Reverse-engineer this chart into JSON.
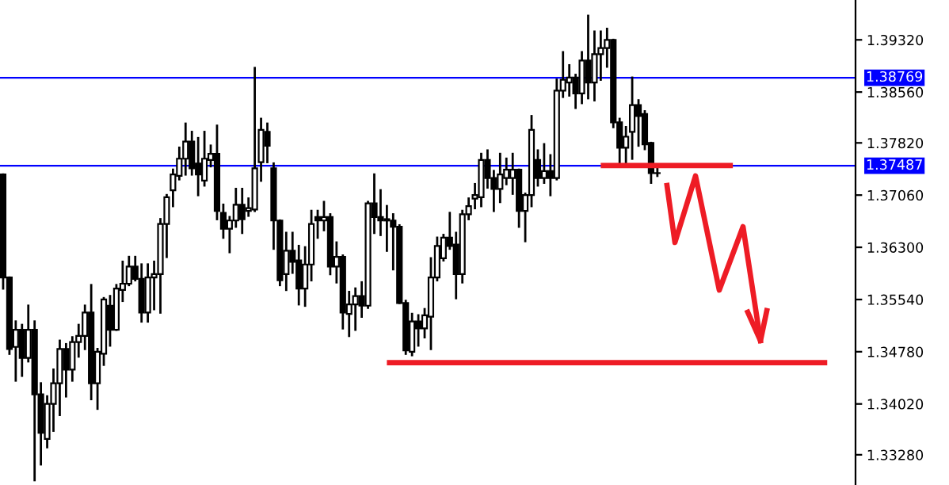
{
  "chart_data": {
    "type": "candlestick",
    "categories": [
      null,
      null,
      null,
      null,
      null,
      null,
      null,
      null,
      null,
      null,
      null,
      null,
      null,
      null,
      null,
      null,
      null,
      null,
      null,
      null,
      null,
      null,
      null,
      null,
      null,
      null,
      null,
      null,
      null,
      null,
      null,
      null,
      null,
      null,
      null,
      null,
      null,
      null,
      null,
      null,
      null,
      null,
      null,
      null,
      null,
      null,
      null,
      null,
      null,
      null,
      null,
      null,
      null,
      null,
      null,
      null,
      null,
      null,
      null,
      null,
      null,
      null,
      null,
      null,
      null,
      null,
      null,
      null,
      null,
      null,
      null,
      null,
      null,
      null,
      null,
      null,
      null,
      null,
      null,
      null,
      null,
      null,
      null,
      null,
      null,
      null,
      null,
      null,
      null,
      null,
      null,
      null,
      null,
      null,
      null,
      null,
      null,
      null,
      null,
      null,
      null,
      null,
      null,
      null,
      null,
      null,
      null,
      null,
      null,
      null,
      null,
      null,
      null,
      null,
      null,
      null,
      null,
      null,
      null,
      null,
      null,
      null,
      null,
      null,
      null,
      null,
      null,
      null,
      null,
      null,
      null,
      null,
      null,
      null,
      null,
      null
    ],
    "ohlc": [
      [
        1.3736,
        1.3736,
        1.357,
        1.3586
      ],
      [
        1.3586,
        1.3586,
        1.3475,
        1.3482
      ],
      [
        1.3485,
        1.3522,
        1.3436,
        1.351
      ],
      [
        1.351,
        1.3517,
        1.3443,
        1.3469
      ],
      [
        1.3469,
        1.3545,
        1.3464,
        1.351
      ],
      [
        1.351,
        1.3522,
        1.3291,
        1.3416
      ],
      [
        1.3416,
        1.3432,
        1.3314,
        1.336
      ],
      [
        1.3351,
        1.3413,
        1.3339,
        1.3402
      ],
      [
        1.3402,
        1.3452,
        1.3363,
        1.3432
      ],
      [
        1.3432,
        1.3494,
        1.3386,
        1.3482
      ],
      [
        1.3482,
        1.3489,
        1.3413,
        1.3452
      ],
      [
        1.3452,
        1.3499,
        1.3436,
        1.3492
      ],
      [
        1.3492,
        1.3517,
        1.3471,
        1.3501
      ],
      [
        1.3501,
        1.3545,
        1.3482,
        1.3535
      ],
      [
        1.3535,
        1.3575,
        1.3409,
        1.3432
      ],
      [
        1.3432,
        1.3482,
        1.3395,
        1.3478
      ],
      [
        1.3475,
        1.3556,
        1.3459,
        1.3554
      ],
      [
        1.3545,
        1.3559,
        1.3487,
        1.351
      ],
      [
        1.351,
        1.3575,
        1.351,
        1.357
      ],
      [
        1.3568,
        1.3609,
        1.3552,
        1.3577
      ],
      [
        1.3577,
        1.3616,
        1.3575,
        1.3602
      ],
      [
        1.3602,
        1.3616,
        1.3582,
        1.3584
      ],
      [
        1.3584,
        1.3605,
        1.3522,
        1.3535
      ],
      [
        1.3535,
        1.3605,
        1.3522,
        1.3586
      ],
      [
        1.3586,
        1.3609,
        1.354,
        1.3591
      ],
      [
        1.3591,
        1.3671,
        1.3535,
        1.3664
      ],
      [
        1.3664,
        1.3706,
        1.3616,
        1.3703
      ],
      [
        1.3713,
        1.3743,
        1.369,
        1.3736
      ],
      [
        1.3734,
        1.3775,
        1.3729,
        1.3759
      ],
      [
        1.3759,
        1.381,
        1.3736,
        1.3784
      ],
      [
        1.3784,
        1.3798,
        1.3736,
        1.3745
      ],
      [
        1.3752,
        1.3789,
        1.3706,
        1.3736
      ],
      [
        1.3727,
        1.3798,
        1.372,
        1.3759
      ],
      [
        1.3757,
        1.3778,
        1.3748,
        1.3766
      ],
      [
        1.3766,
        1.3807,
        1.3671,
        1.3683
      ],
      [
        1.368,
        1.3692,
        1.3644,
        1.3657
      ],
      [
        1.3657,
        1.3674,
        1.3623,
        1.3669
      ],
      [
        1.3669,
        1.3715,
        1.366,
        1.3692
      ],
      [
        1.3692,
        1.3715,
        1.3651,
        1.3671
      ],
      [
        1.3683,
        1.3701,
        1.3676,
        1.3687
      ],
      [
        1.3685,
        1.3891,
        1.3683,
        1.3745
      ],
      [
        1.3754,
        1.3817,
        1.3727,
        1.3801
      ],
      [
        1.3798,
        1.381,
        1.3754,
        1.3778
      ],
      [
        1.3745,
        1.3752,
        1.3628,
        1.3669
      ],
      [
        1.3669,
        1.3669,
        1.3575,
        1.3582
      ],
      [
        1.3591,
        1.3651,
        1.3568,
        1.3625
      ],
      [
        1.3625,
        1.3651,
        1.3593,
        1.3609
      ],
      [
        1.3611,
        1.3632,
        1.3547,
        1.357
      ],
      [
        1.357,
        1.363,
        1.3545,
        1.3605
      ],
      [
        1.3605,
        1.3683,
        1.3582,
        1.3664
      ],
      [
        1.3674,
        1.3683,
        1.3644,
        1.3669
      ],
      [
        1.3669,
        1.3696,
        1.3655,
        1.3674
      ],
      [
        1.3674,
        1.3678,
        1.3591,
        1.3602
      ],
      [
        1.3602,
        1.3637,
        1.3579,
        1.3616
      ],
      [
        1.3616,
        1.3618,
        1.3512,
        1.3535
      ],
      [
        1.3533,
        1.3565,
        1.3501,
        1.3547
      ],
      [
        1.3547,
        1.357,
        1.351,
        1.3559
      ],
      [
        1.3559,
        1.3579,
        1.3529,
        1.3545
      ],
      [
        1.3545,
        1.3696,
        1.3542,
        1.3694
      ],
      [
        1.3694,
        1.3736,
        1.3651,
        1.3674
      ],
      [
        1.3674,
        1.3713,
        1.3648,
        1.3669
      ],
      [
        1.3671,
        1.369,
        1.3625,
        1.3669
      ],
      [
        1.3669,
        1.3678,
        1.3598,
        1.366
      ],
      [
        1.366,
        1.3662,
        1.3549,
        1.3549
      ],
      [
        1.3549,
        1.3552,
        1.3475,
        1.348
      ],
      [
        1.3478,
        1.3533,
        1.3473,
        1.3522
      ],
      [
        1.3522,
        1.3531,
        1.3487,
        1.3512
      ],
      [
        1.3512,
        1.354,
        1.3499,
        1.3531
      ],
      [
        1.3529,
        1.3614,
        1.3482,
        1.3586
      ],
      [
        1.3586,
        1.3644,
        1.3582,
        1.3632
      ],
      [
        1.3614,
        1.3648,
        1.3611,
        1.3644
      ],
      [
        1.3644,
        1.368,
        1.3628,
        1.3632
      ],
      [
        1.3634,
        1.3651,
        1.3556,
        1.3591
      ],
      [
        1.3591,
        1.3683,
        1.3579,
        1.3678
      ],
      [
        1.3678,
        1.3701,
        1.3671,
        1.369
      ],
      [
        1.3701,
        1.3722,
        1.3687,
        1.3706
      ],
      [
        1.3703,
        1.3766,
        1.369,
        1.3757
      ],
      [
        1.3757,
        1.3771,
        1.3717,
        1.3731
      ],
      [
        1.3731,
        1.3741,
        1.3683,
        1.3715
      ],
      [
        1.3715,
        1.3766,
        1.3696,
        1.3736
      ],
      [
        1.3731,
        1.3759,
        1.3722,
        1.3743
      ],
      [
        1.3731,
        1.3766,
        1.3708,
        1.3743
      ],
      [
        1.3743,
        1.3743,
        1.366,
        1.3683
      ],
      [
        1.3683,
        1.3708,
        1.3639,
        1.3706
      ],
      [
        1.3706,
        1.3821,
        1.369,
        1.3801
      ],
      [
        1.3757,
        1.3771,
        1.372,
        1.3731
      ],
      [
        1.3731,
        1.378,
        1.3724,
        1.3741
      ],
      [
        1.3741,
        1.3764,
        1.3706,
        1.3731
      ],
      [
        1.3731,
        1.3874,
        1.3729,
        1.3858
      ],
      [
        1.3858,
        1.3914,
        1.3849,
        1.3874
      ],
      [
        1.387,
        1.3895,
        1.3851,
        1.3877
      ],
      [
        1.3877,
        1.3881,
        1.3833,
        1.3854
      ],
      [
        1.3854,
        1.3914,
        1.384,
        1.3902
      ],
      [
        1.3902,
        1.3967,
        1.3847,
        1.387
      ],
      [
        1.387,
        1.3944,
        1.3844,
        1.3911
      ],
      [
        1.3911,
        1.3944,
        1.3874,
        1.392
      ],
      [
        1.392,
        1.3948,
        1.3893,
        1.3932
      ],
      [
        1.3932,
        1.3932,
        1.3805,
        1.3812
      ],
      [
        1.3812,
        1.3817,
        1.375,
        1.3775
      ],
      [
        1.3775,
        1.3805,
        1.3752,
        1.3791
      ],
      [
        1.3798,
        1.3877,
        1.3759,
        1.3837
      ],
      [
        1.3837,
        1.3844,
        1.3778,
        1.3821
      ],
      [
        1.3824,
        1.3828,
        1.3773,
        1.378
      ],
      [
        1.3782,
        1.3782,
        1.3724,
        1.3738
      ],
      [
        1.3738,
        1.3745,
        1.3734,
        1.3738
      ],
      null,
      null,
      null,
      null,
      null,
      null,
      null,
      null,
      null,
      null,
      null,
      null,
      null,
      null,
      null,
      null,
      null,
      null,
      null,
      null,
      null,
      null,
      null,
      null,
      null,
      null,
      null,
      null,
      null,
      null,
      null
    ],
    "series": [
      {
        "type": "line",
        "color": "#ee1c25",
        "values": [
          null,
          null,
          null,
          null,
          null,
          null,
          null,
          null,
          null,
          null,
          null,
          null,
          null,
          null,
          null,
          null,
          null,
          null,
          null,
          null,
          null,
          null,
          null,
          null,
          null,
          null,
          null,
          null,
          null,
          null,
          null,
          null,
          null,
          null,
          null,
          null,
          null,
          null,
          null,
          null,
          null,
          null,
          null,
          null,
          null,
          null,
          null,
          null,
          null,
          null,
          null,
          null,
          null,
          null,
          null,
          null,
          null,
          null,
          null,
          null,
          null,
          null,
          null,
          null,
          null,
          null,
          null,
          null,
          null,
          null,
          null,
          null,
          null,
          null,
          null,
          null,
          null,
          null,
          null,
          null,
          null,
          null,
          null,
          null,
          null,
          null,
          null,
          null,
          null,
          null,
          null,
          null,
          null,
          null,
          null,
          1.3749,
          1.3749,
          1.3749,
          1.3749,
          1.3749,
          1.3749,
          1.3749,
          1.3749,
          1.3749,
          1.3749,
          1.3749,
          1.3749,
          1.3749,
          1.3749,
          1.3749,
          1.3749,
          1.3749,
          1.3749,
          1.3749,
          1.3749,
          1.3749,
          1.3749,
          null,
          null,
          null,
          null,
          null,
          null,
          null,
          null,
          null,
          null,
          null,
          null,
          null,
          null,
          null,
          null,
          null,
          null,
          null
        ]
      },
      {
        "type": "line",
        "color": "#ee1c25",
        "values": [
          null,
          null,
          null,
          null,
          null,
          null,
          null,
          null,
          null,
          null,
          null,
          null,
          null,
          null,
          null,
          null,
          null,
          null,
          null,
          null,
          null,
          null,
          null,
          null,
          null,
          null,
          null,
          null,
          null,
          null,
          null,
          null,
          null,
          null,
          null,
          null,
          null,
          null,
          null,
          null,
          null,
          null,
          null,
          null,
          null,
          null,
          null,
          null,
          null,
          null,
          null,
          null,
          null,
          null,
          null,
          null,
          null,
          null,
          null,
          null,
          null,
          1.3462,
          1.3462,
          1.3462,
          1.3462,
          1.3462,
          1.3462,
          1.3462,
          1.3462,
          1.3462,
          1.3462,
          1.3462,
          1.3462,
          1.3462,
          1.3462,
          1.3462,
          1.3462,
          1.3462,
          1.3462,
          1.3462,
          1.3462,
          1.3462,
          1.3462,
          1.3462,
          1.3462,
          1.3462,
          1.3462,
          1.3462,
          1.3462,
          1.3462,
          1.3462,
          1.3462,
          1.3462,
          1.3462,
          1.3462,
          1.3462,
          1.3462,
          1.3462,
          1.3462,
          1.3462,
          1.3462,
          1.3462,
          1.3462,
          1.3462,
          1.3462,
          1.3462,
          1.3462,
          1.3462,
          1.3462,
          1.3462,
          1.3462,
          1.3462,
          1.3462,
          1.3462,
          1.3462,
          1.3462,
          1.3462,
          1.3462,
          1.3462,
          1.3462,
          1.3462,
          1.3462,
          1.3462,
          1.3462,
          1.3462,
          1.3462,
          1.3462,
          1.3462,
          1.3462,
          1.3462,
          1.3462,
          1.3462,
          null,
          null,
          null,
          null
        ]
      }
    ],
    "ylim": [
      1.3284,
      1.399
    ],
    "yticks": [
      {
        "value": 1.3328,
        "label": "1.33280"
      },
      {
        "value": 1.3402,
        "label": "1.34020"
      },
      {
        "value": 1.3478,
        "label": "1.34780"
      },
      {
        "value": 1.3554,
        "label": "1.35540"
      },
      {
        "value": 1.363,
        "label": "1.36300"
      },
      {
        "value": 1.3706,
        "label": "1.37060"
      },
      {
        "value": 1.3782,
        "label": "1.37820"
      },
      {
        "value": 1.3856,
        "label": "1.38560"
      },
      {
        "value": 1.3932,
        "label": "1.39320"
      }
    ],
    "ref_lines": [
      {
        "axis": "y",
        "value": 1.38769,
        "label": "1.38769",
        "color": "#0000ff"
      },
      {
        "axis": "y",
        "value": 1.37487,
        "label": "1.37487",
        "color": "#0000ff"
      }
    ],
    "grid": false,
    "legend": false
  }
}
